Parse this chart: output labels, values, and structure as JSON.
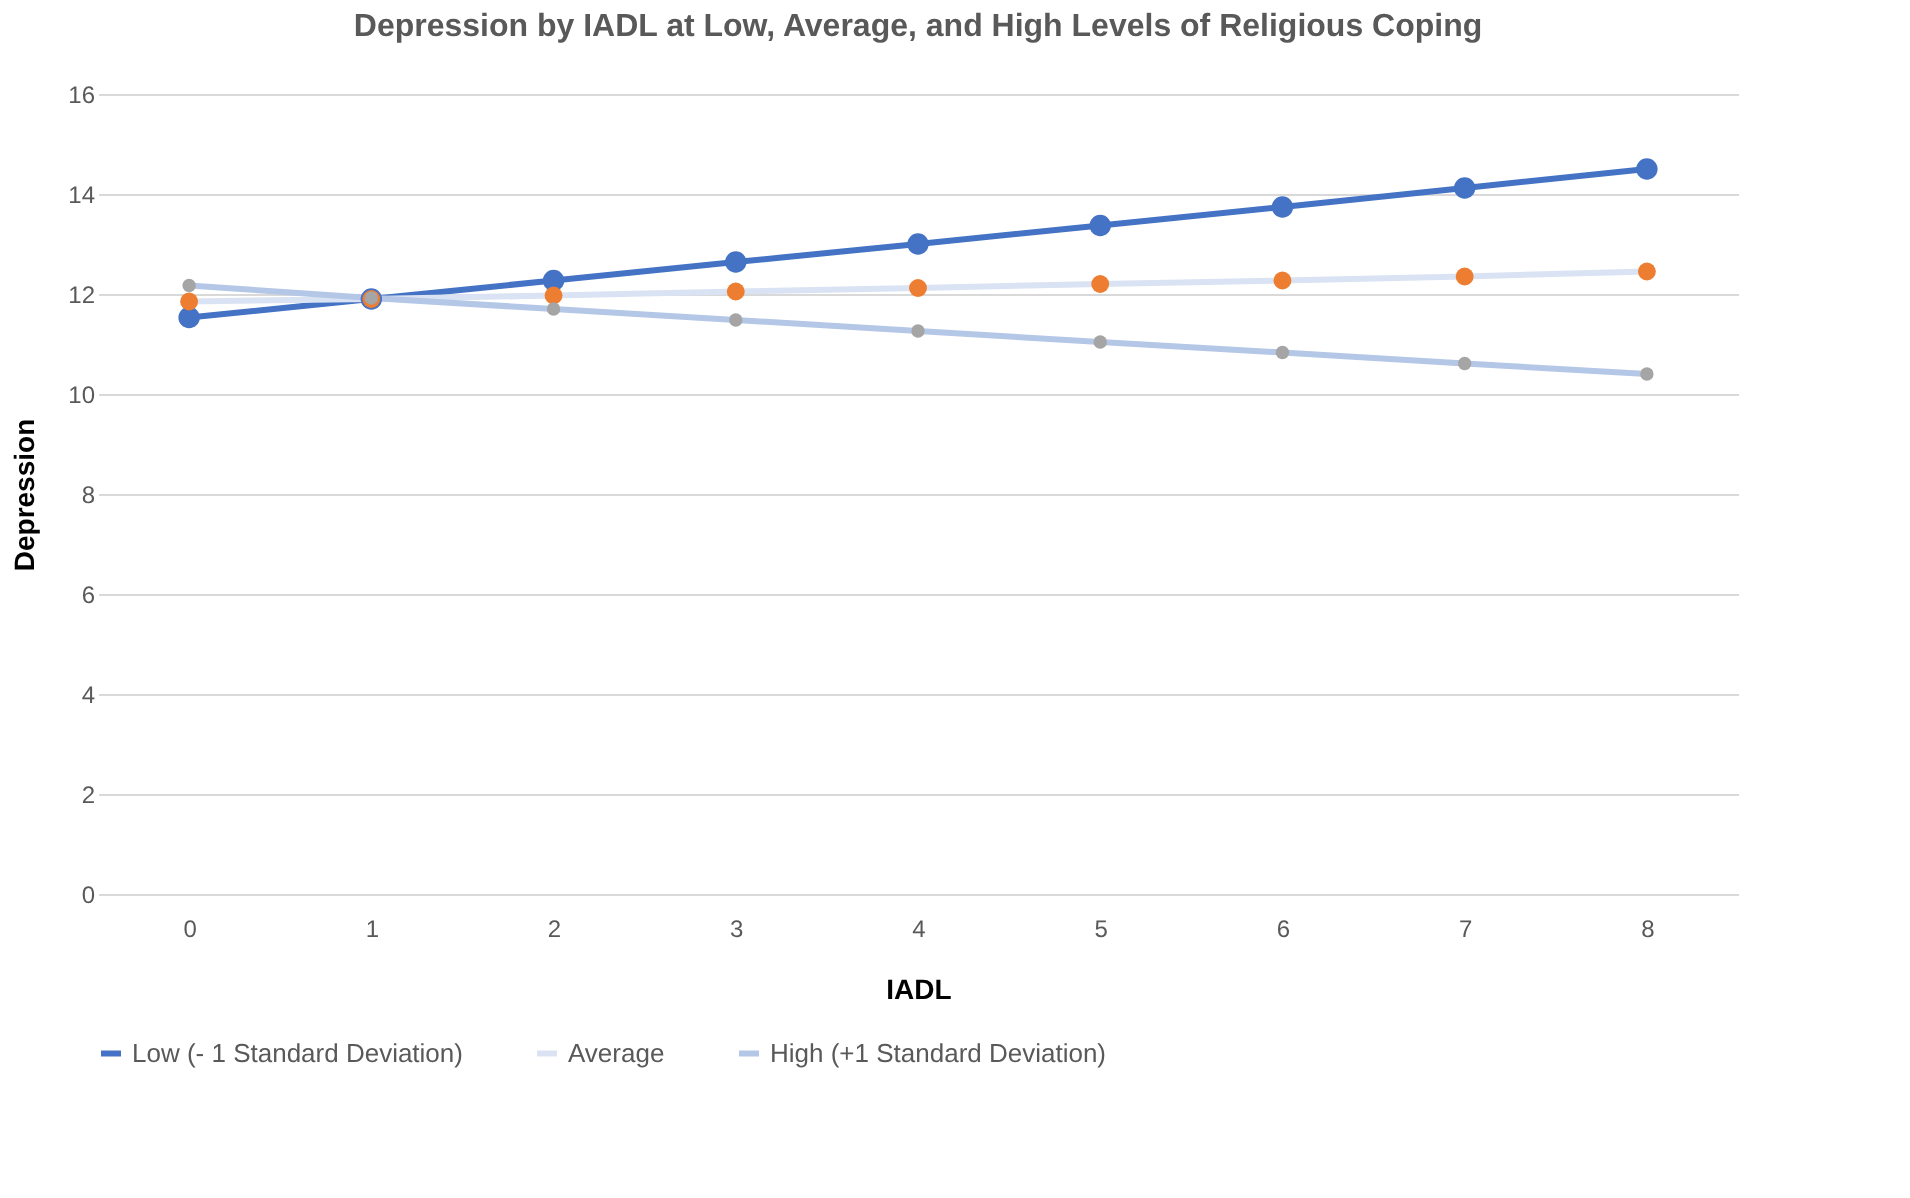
{
  "chart_data": {
    "type": "line",
    "title": "Depression by IADL at Low, Average, and High Levels of Religious Coping",
    "xlabel": "IADL",
    "ylabel": "Depression",
    "categories": [
      "0",
      "1",
      "2",
      "3",
      "4",
      "5",
      "6",
      "7",
      "8"
    ],
    "series": [
      {
        "name": "Low (- 1 Standard Deviation)",
        "color": "#4472c4",
        "colors": [
          "#4472c4",
          "#4472c4",
          "#4472c4",
          "#4472c4",
          "#4472c4",
          "#4472c4",
          "#4472c4",
          "#4472c4",
          "#4472c4"
        ],
        "values": [
          11.53,
          11.9,
          12.27,
          12.64,
          13.0,
          13.37,
          13.74,
          14.12,
          14.5
        ]
      },
      {
        "name": "Average",
        "color": "#dae3f3",
        "colors": [
          "#ed7d31",
          "#ed7d31",
          "#ed7d31",
          "#ed7d31",
          "#ed7d31",
          "#ed7d31",
          "#ed7d31",
          "#ed7d31",
          "#ed7d31"
        ],
        "values": [
          11.85,
          11.9,
          11.97,
          12.05,
          12.12,
          12.2,
          12.27,
          12.35,
          12.45
        ]
      },
      {
        "name": "High (+1 Standard Deviation)",
        "color": "#b4c7e7",
        "colors": [
          "#a5a5a5",
          "#a5a5a5",
          "#a5a5a5",
          "#a5a5a5",
          "#a5a5a5",
          "#a5a5a5",
          "#a5a5a5",
          "#a5a5a5",
          "#a5a5a5"
        ],
        "values": [
          12.17,
          11.92,
          11.7,
          11.48,
          11.26,
          11.04,
          10.83,
          10.61,
          10.4
        ]
      }
    ],
    "ylim": [
      0,
      16
    ],
    "yticks": [
      0,
      2,
      4,
      6,
      8,
      10,
      12,
      14,
      16
    ],
    "grid": "y",
    "legend": "bottom",
    "marker": "circle",
    "line_style": "solid"
  }
}
